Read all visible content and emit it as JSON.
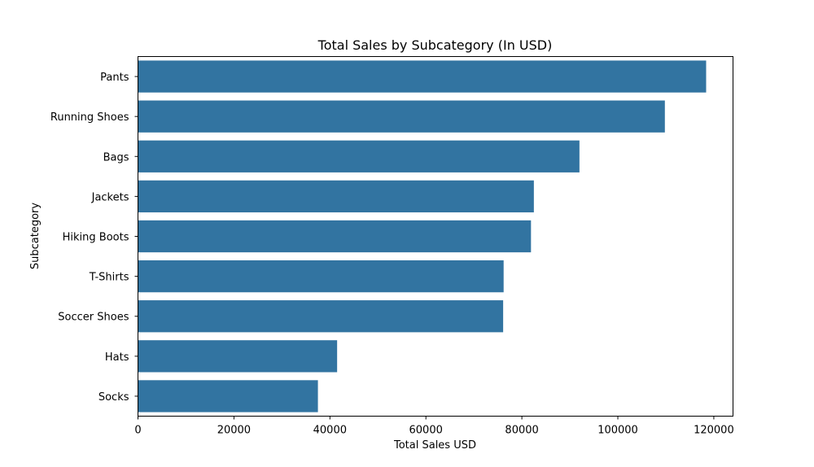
{
  "chart_data": {
    "type": "bar",
    "orientation": "horizontal",
    "title": "Total Sales by Subcategory (In USD)",
    "xlabel": "Total Sales USD",
    "ylabel": "Subcategory",
    "categories": [
      "Pants",
      "Running Shoes",
      "Bags",
      "Jackets",
      "Hiking Boots",
      "T-Shirts",
      "Soccer Shoes",
      "Hats",
      "Socks"
    ],
    "values": [
      118400,
      109800,
      92000,
      82500,
      81900,
      76200,
      76100,
      41500,
      37500
    ],
    "xlim": [
      0,
      124000
    ],
    "xticks": [
      0,
      20000,
      40000,
      60000,
      80000,
      100000,
      120000
    ],
    "xtick_labels": [
      "0",
      "20000",
      "40000",
      "60000",
      "80000",
      "100000",
      "120000"
    ],
    "grid": false,
    "bar_color": "#3274a1"
  }
}
